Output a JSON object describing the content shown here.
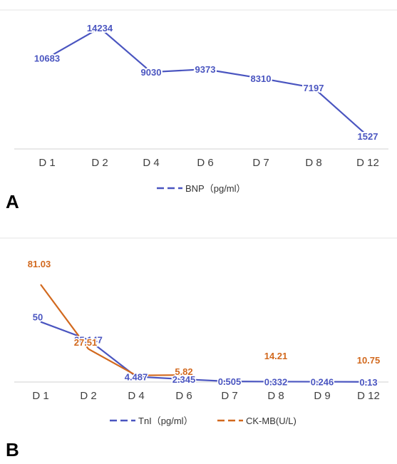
{
  "colors": {
    "blue": "#4a55c0",
    "orange": "#d2691e",
    "axis": "#d9d9d9",
    "grid": "#e6e6e6"
  },
  "chart_data": [
    {
      "panel": "A",
      "type": "line",
      "categories": [
        "D 1",
        "D 2",
        "D 4",
        "D 6",
        "D 7",
        "D 8",
        "D 12"
      ],
      "series": [
        {
          "name": "BNP（pg/ml）",
          "color": "#4a55c0",
          "values": [
            10683,
            14234,
            9030,
            9373,
            8310,
            7197,
            1527
          ]
        }
      ],
      "ylim": [
        0,
        16000
      ],
      "grid": false,
      "legend": "bottom"
    },
    {
      "panel": "B",
      "type": "line",
      "categories": [
        "D 1",
        "D 2",
        "D 4",
        "D 6",
        "D 7",
        "D 8",
        "D 9",
        "D 12"
      ],
      "series": [
        {
          "name": "TnI（pg/ml）",
          "color": "#4a55c0",
          "values": [
            50,
            35.147,
            4.487,
            2.345,
            0.505,
            0.332,
            0.246,
            0.13
          ],
          "labels": [
            "50",
            "35.147",
            "4.487",
            "2.345",
            "0.505",
            "0.332",
            "0.246",
            "0.13"
          ]
        },
        {
          "name": "CK-MB(U/L)",
          "color": "#d2691e",
          "values": [
            81.03,
            27.51,
            5.5,
            5.82,
            null,
            14.21,
            null,
            10.75
          ],
          "labels": [
            "81.03",
            "27.51",
            "",
            "5.82",
            "",
            "14.21",
            "",
            "10.75"
          ],
          "line_points": [
            0,
            1,
            2,
            3
          ]
        }
      ],
      "ylim": [
        0,
        90
      ],
      "grid": false,
      "legend": "bottom"
    }
  ]
}
